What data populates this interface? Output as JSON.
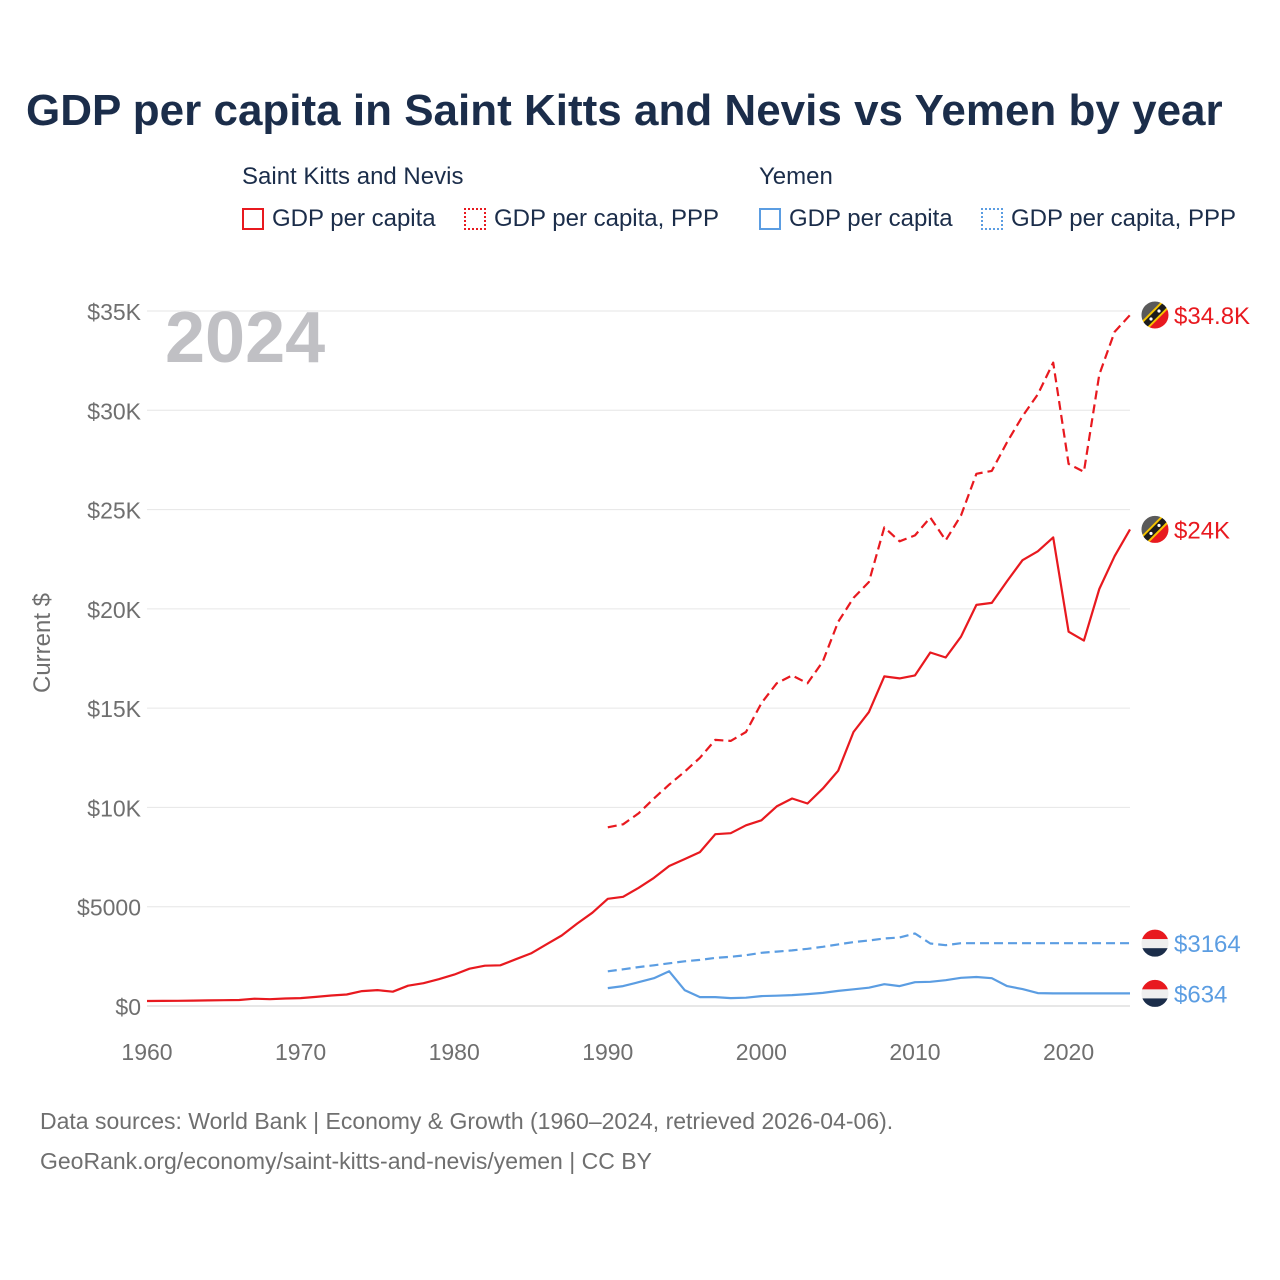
{
  "title": "GDP per capita in Saint Kitts and Nevis vs Yemen by year",
  "legend": {
    "groups": [
      {
        "name": "Saint Kitts and Nevis",
        "items": [
          {
            "label": "GDP per capita",
            "color": "#e8191f",
            "style": "solid"
          },
          {
            "label": "GDP per capita, PPP",
            "color": "#e8191f",
            "style": "dotted"
          }
        ]
      },
      {
        "name": "Yemen",
        "items": [
          {
            "label": "GDP per capita",
            "color": "#5b9de2",
            "style": "solid"
          },
          {
            "label": "GDP per capita, PPP",
            "color": "#5b9de2",
            "style": "dotted"
          }
        ]
      }
    ]
  },
  "footer": {
    "line1": "Data sources: World Bank | Economy & Growth (1960–2024, retrieved 2026-04-06).",
    "line2": "GeoRank.org/economy/saint-kitts-and-nevis/yemen | CC BY"
  },
  "chart_data": {
    "type": "line",
    "title": "GDP per capita in Saint Kitts and Nevis vs Yemen by year",
    "year_watermark": "2024",
    "ylabel": "Current $",
    "xlabel": "",
    "xlim": [
      1960,
      2024
    ],
    "ylim": [
      0,
      35000
    ],
    "x_ticks": [
      1960,
      1970,
      1980,
      1990,
      2000,
      2010,
      2020
    ],
    "y_ticks": [
      {
        "value": 0,
        "label": "$0"
      },
      {
        "value": 5000,
        "label": "$5000"
      },
      {
        "value": 10000,
        "label": "$10K"
      },
      {
        "value": 15000,
        "label": "$15K"
      },
      {
        "value": 20000,
        "label": "$20K"
      },
      {
        "value": 25000,
        "label": "$25K"
      },
      {
        "value": 30000,
        "label": "$30K"
      },
      {
        "value": 35000,
        "label": "$35K"
      }
    ],
    "grid": true,
    "series": [
      {
        "name": "Saint Kitts and Nevis GDP per capita",
        "color": "#e8191f",
        "dash": "solid",
        "flag": "kn",
        "end_label": "$24K",
        "x": [
          1960,
          1961,
          1962,
          1963,
          1964,
          1965,
          1966,
          1967,
          1968,
          1969,
          1970,
          1971,
          1972,
          1973,
          1974,
          1975,
          1976,
          1977,
          1978,
          1979,
          1980,
          1981,
          1982,
          1983,
          1984,
          1985,
          1986,
          1987,
          1988,
          1989,
          1990,
          1991,
          1992,
          1993,
          1994,
          1995,
          1996,
          1997,
          1998,
          1999,
          2000,
          2001,
          2002,
          2003,
          2004,
          2005,
          2006,
          2007,
          2008,
          2009,
          2010,
          2011,
          2012,
          2013,
          2014,
          2015,
          2016,
          2017,
          2018,
          2019,
          2020,
          2021,
          2022,
          2023,
          2024
        ],
        "values": [
          250,
          255,
          260,
          270,
          280,
          290,
          300,
          370,
          340,
          380,
          400,
          460,
          530,
          580,
          750,
          800,
          720,
          1020,
          1150,
          1350,
          1580,
          1880,
          2030,
          2050,
          2350,
          2650,
          3100,
          3550,
          4150,
          4700,
          5400,
          5500,
          5950,
          6450,
          7050,
          7400,
          7750,
          8650,
          8700,
          9100,
          9350,
          10050,
          10450,
          10200,
          10950,
          11850,
          13800,
          14800,
          16600,
          16500,
          16650,
          17800,
          17550,
          18600,
          20200,
          20300,
          21400,
          22450,
          22900,
          23600,
          18850,
          18400,
          21000,
          22650,
          24000
        ]
      },
      {
        "name": "Saint Kitts and Nevis GDP per capita, PPP",
        "color": "#e8191f",
        "dash": "dashed",
        "flag": "kn",
        "end_label": "$34.8K",
        "x": [
          1990,
          1991,
          1992,
          1993,
          1994,
          1995,
          1996,
          1997,
          1998,
          1999,
          2000,
          2001,
          2002,
          2003,
          2004,
          2005,
          2006,
          2007,
          2008,
          2009,
          2010,
          2011,
          2012,
          2013,
          2014,
          2015,
          2016,
          2017,
          2018,
          2019,
          2020,
          2021,
          2022,
          2023,
          2024
        ],
        "values": [
          9000,
          9150,
          9700,
          10450,
          11150,
          11800,
          12500,
          13400,
          13350,
          13800,
          15250,
          16250,
          16650,
          16250,
          17350,
          19350,
          20550,
          21350,
          24100,
          23400,
          23700,
          24600,
          23450,
          24700,
          26800,
          26950,
          28400,
          29700,
          30800,
          32400,
          27300,
          26900,
          31800,
          33950,
          34800
        ]
      },
      {
        "name": "Yemen GDP per capita",
        "color": "#5b9de2",
        "dash": "solid",
        "flag": "ye",
        "end_label": "$634",
        "x": [
          1990,
          1991,
          1992,
          1993,
          1994,
          1995,
          1996,
          1997,
          1998,
          1999,
          2000,
          2001,
          2002,
          2003,
          2004,
          2005,
          2006,
          2007,
          2008,
          2009,
          2010,
          2011,
          2012,
          2013,
          2014,
          2015,
          2016,
          2017,
          2018,
          2019,
          2020,
          2021,
          2022,
          2023,
          2024
        ],
        "values": [
          900,
          1000,
          1200,
          1400,
          1750,
          800,
          450,
          450,
          400,
          420,
          500,
          520,
          550,
          600,
          660,
          760,
          840,
          920,
          1100,
          1000,
          1200,
          1220,
          1300,
          1420,
          1460,
          1400,
          1000,
          850,
          650,
          634,
          634,
          634,
          634,
          634,
          634
        ]
      },
      {
        "name": "Yemen GDP per capita, PPP",
        "color": "#5b9de2",
        "dash": "dashed",
        "flag": "ye",
        "end_label": "$3164",
        "x": [
          1990,
          1991,
          1992,
          1993,
          1994,
          1995,
          1996,
          1997,
          1998,
          1999,
          2000,
          2001,
          2002,
          2003,
          2004,
          2005,
          2006,
          2007,
          2008,
          2009,
          2010,
          2011,
          2012,
          2013,
          2014,
          2015,
          2016,
          2017,
          2018,
          2019,
          2020,
          2021,
          2022,
          2023,
          2024
        ],
        "values": [
          1750,
          1850,
          1960,
          2050,
          2150,
          2250,
          2320,
          2420,
          2480,
          2560,
          2680,
          2740,
          2800,
          2880,
          2980,
          3100,
          3220,
          3300,
          3400,
          3450,
          3650,
          3150,
          3060,
          3164,
          3164,
          3164,
          3164,
          3164,
          3164,
          3164,
          3164,
          3164,
          3164,
          3164,
          3164
        ]
      }
    ]
  }
}
